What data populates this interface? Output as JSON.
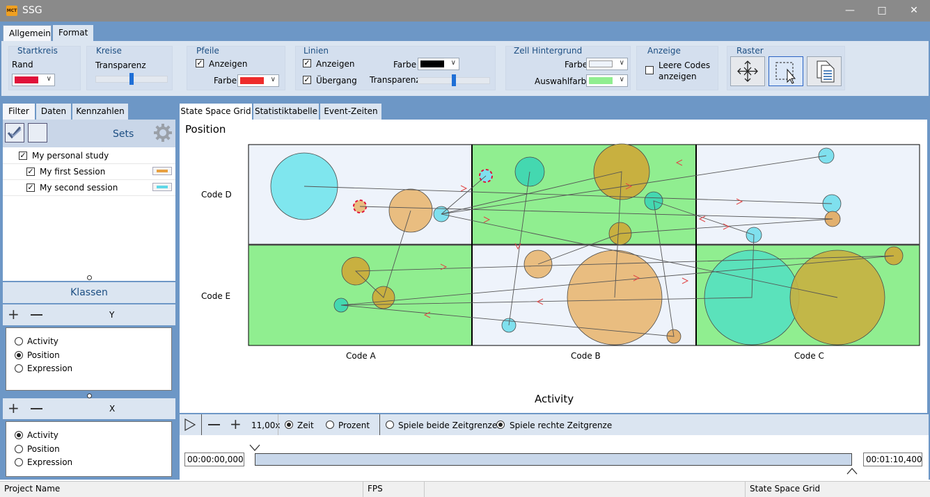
{
  "window": {
    "title": "SSG",
    "app_icon_text": "MCT"
  },
  "ribbon": {
    "tabs": [
      "Allgemein",
      "Format"
    ],
    "startkreis": {
      "title": "Startkreis",
      "rand_label": "Rand",
      "rand_color": "#e0123a"
    },
    "kreise": {
      "title": "Kreise",
      "transparenz_label": "Transparenz",
      "transparenz_value": 0.5
    },
    "pfeile": {
      "title": "Pfeile",
      "anzeigen_label": "Anzeigen",
      "anzeigen_checked": true,
      "farbe_label": "Farbe",
      "farbe_color": "#ee2b2b"
    },
    "linien": {
      "title": "Linien",
      "anzeigen_label": "Anzeigen",
      "anzeigen_checked": true,
      "uebergang_label": "Übergang",
      "uebergang_checked": true,
      "farbe_label": "Farbe",
      "farbe_color": "#000000",
      "transparenz_label": "Transparenz",
      "transparenz_value": 0.5
    },
    "zell_hintergrund": {
      "title": "Zell Hintergrund",
      "farbe_label": "Farbe",
      "farbe_color": "#eef3fb",
      "auswahlfarbe_label": "Auswahlfarbe",
      "auswahlfarbe_color": "#90ee90"
    },
    "anzeige": {
      "title": "Anzeige",
      "leere_codes_label_1": "Leere Codes",
      "leere_codes_label_2": "anzeigen",
      "leere_codes_checked": false
    },
    "raster": {
      "title": "Raster",
      "buttons": [
        "move-icon",
        "select-region-icon",
        "copy-icon"
      ]
    }
  },
  "left_pane": {
    "tabs": [
      "Filter",
      "Daten",
      "Kennzahlen"
    ],
    "sets_label": "Sets",
    "tree": [
      {
        "label": "My personal study",
        "checked": true,
        "level": 0
      },
      {
        "label": "My first Session",
        "checked": true,
        "level": 1,
        "color": "#e8a040"
      },
      {
        "label": "My second session",
        "checked": true,
        "level": 1,
        "color": "#5fd8e8"
      }
    ],
    "klassen_label": "Klassen",
    "y_axis": {
      "label": "Y",
      "options": [
        "Activity",
        "Position",
        "Expression"
      ],
      "selected": "Position"
    },
    "x_axis": {
      "label": "X",
      "options": [
        "Activity",
        "Position",
        "Expression"
      ],
      "selected": "Activity"
    }
  },
  "main": {
    "tabs": [
      "State Space Grid",
      "Statistiktabelle",
      "Event-Zeiten"
    ],
    "grid": {
      "y_title": "Position",
      "x_title": "Activity",
      "columns": [
        "Code A",
        "Code B",
        "Code C"
      ],
      "rows": [
        "Code D",
        "Code E"
      ],
      "cell_bg": {
        "normal": "#eef3fb",
        "selected": "#90ee90"
      }
    },
    "playback": {
      "zoom": "11,00x",
      "zeit_label": "Zeit",
      "prozent_label": "Prozent",
      "beide_label": "Spiele beide Zeitgrenzen",
      "rechte_label": "Spiele rechte Zeitgrenze",
      "mode": "Zeit",
      "play_mode": "rechte",
      "start_time": "00:00:00,000",
      "end_time": "00:01:10,400"
    }
  },
  "statusbar": {
    "project": "Project Name",
    "fps": "FPS",
    "empty": "",
    "view": "State Space Grid"
  }
}
